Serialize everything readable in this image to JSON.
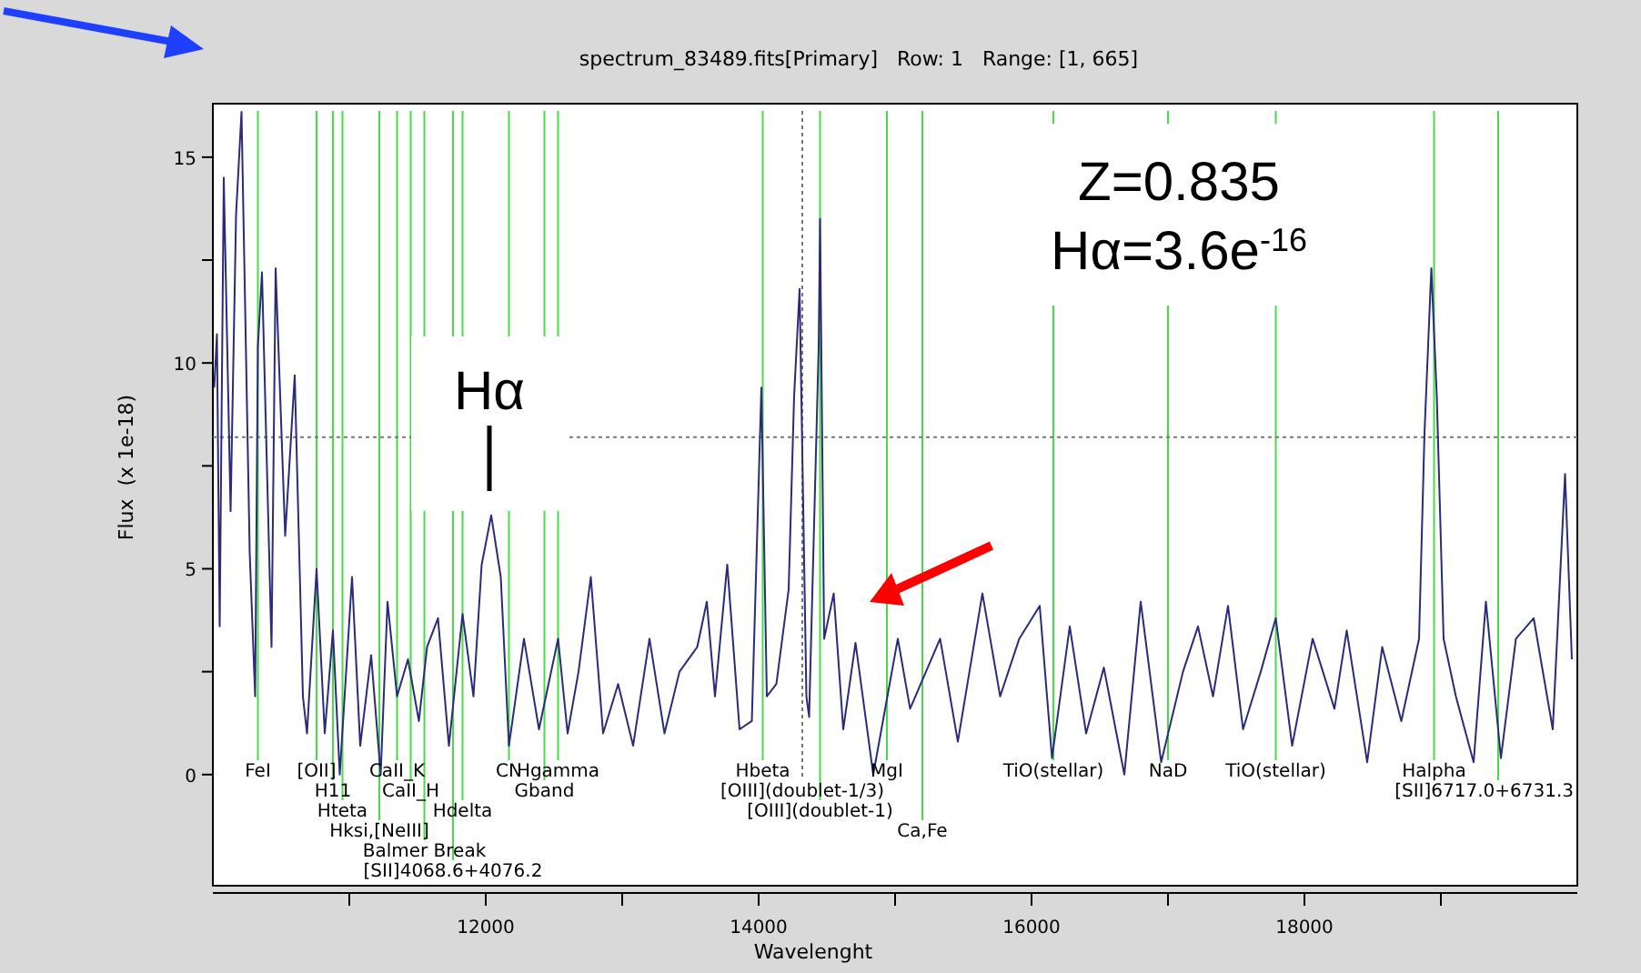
{
  "chart_data": {
    "type": "line",
    "title": "spectrum_83489.fits[Primary]   Row: 1   Range: [1, 665]",
    "xlabel": "Wavelenght",
    "ylabel": "Flux  (x 1e-18)",
    "x": [
      10010,
      10030,
      10050,
      10080,
      10130,
      10170,
      10210,
      10270,
      10310,
      10330,
      10360,
      10430,
      10460,
      10530,
      10600,
      10660,
      10690,
      10760,
      10820,
      10880,
      10930,
      11020,
      11080,
      11160,
      11230,
      11280,
      11350,
      11430,
      11510,
      11570,
      11650,
      11730,
      11830,
      11910,
      11970,
      12040,
      12110,
      12170,
      12280,
      12390,
      12530,
      12600,
      12680,
      12770,
      12860,
      12970,
      13080,
      13200,
      13310,
      13420,
      13550,
      13620,
      13680,
      13770,
      13860,
      13950,
      14020,
      14060,
      14130,
      14220,
      14260,
      14300,
      14350,
      14370,
      14440,
      14450,
      14480,
      14550,
      14620,
      14710,
      14840,
      15020,
      15110,
      15330,
      15460,
      15640,
      15770,
      15910,
      16060,
      16150,
      16280,
      16400,
      16530,
      16680,
      16800,
      16950,
      17110,
      17220,
      17330,
      17440,
      17550,
      17680,
      17790,
      17910,
      18060,
      18220,
      18310,
      18460,
      18570,
      18710,
      18840,
      18880,
      18930,
      18970,
      19020,
      19110,
      19240,
      19330,
      19440,
      19550,
      19680,
      19820,
      19910,
      19960
    ],
    "series": [
      {
        "color": "#2b2b7a",
        "values": [
          9.4,
          10.7,
          3.6,
          14.5,
          6.4,
          13.6,
          16.1,
          5.4,
          1.9,
          10.4,
          12.2,
          3.1,
          12.3,
          5.8,
          9.7,
          1.9,
          1.0,
          5.0,
          1.0,
          3.5,
          0.0,
          4.8,
          0.7,
          2.9,
          0.0,
          4.2,
          1.9,
          2.8,
          1.3,
          3.1,
          3.8,
          0.7,
          3.9,
          1.9,
          5.1,
          6.3,
          4.8,
          0.7,
          3.3,
          1.1,
          3.3,
          1.0,
          2.5,
          4.8,
          1.0,
          2.2,
          0.7,
          3.3,
          1.0,
          2.5,
          3.1,
          4.2,
          1.9,
          5.1,
          1.1,
          1.3,
          9.4,
          1.9,
          2.2,
          4.5,
          9.2,
          11.8,
          1.9,
          1.4,
          10.4,
          13.5,
          3.3,
          4.4,
          1.1,
          3.2,
          0.0,
          3.3,
          1.6,
          3.3,
          0.8,
          4.4,
          1.9,
          3.3,
          4.1,
          0.4,
          3.6,
          1.0,
          2.6,
          0.0,
          4.2,
          0.3,
          2.5,
          3.6,
          1.9,
          4.1,
          1.1,
          2.5,
          3.8,
          0.7,
          3.3,
          1.6,
          3.5,
          0.3,
          3.1,
          1.3,
          3.3,
          8.3,
          12.3,
          9.2,
          3.3,
          1.9,
          0.3,
          4.2,
          0.4,
          3.3,
          3.8,
          1.1,
          7.3,
          2.8
        ]
      }
    ],
    "xlim": [
      10000,
      20000
    ],
    "xticks": [
      {
        "value": 11000,
        "label": null
      },
      12000,
      {
        "value": 13000,
        "label": null
      },
      14000,
      {
        "value": 15000,
        "label": null
      },
      16000,
      {
        "value": 17000,
        "label": null
      },
      18000,
      {
        "value": 19000,
        "label": null
      }
    ],
    "ylim": [
      -2.7,
      16.3
    ],
    "yticks": [
      0,
      {
        "value": 2.5,
        "label": null
      },
      5,
      {
        "value": 7.5,
        "label": null
      },
      10,
      {
        "value": 12.5,
        "label": null
      },
      15
    ],
    "grid": false,
    "marker": "none",
    "line_style": "solid",
    "ref_lines": [
      {
        "axis": "x",
        "value": 10330,
        "label": "FeI",
        "color": "#44dd44"
      },
      {
        "axis": "x",
        "value": 10760,
        "label": "[OII]",
        "color": "#44dd44"
      },
      {
        "axis": "x",
        "value": 10880,
        "label": "H11",
        "color": "#44dd44"
      },
      {
        "axis": "x",
        "value": 10950,
        "label": "Hteta",
        "color": "#44dd44"
      },
      {
        "axis": "x",
        "value": 11220,
        "label": "Hksi,[NeIII]",
        "color": "#44dd44"
      },
      {
        "axis": "x",
        "value": 11350,
        "label": "CaII_K",
        "color": "#44dd44"
      },
      {
        "axis": "x",
        "value": 11450,
        "label": "CaII_H",
        "color": "#44dd44"
      },
      {
        "axis": "x",
        "value": 11550,
        "label": "Balmer Break",
        "color": "#44dd44"
      },
      {
        "axis": "x",
        "value": 11760,
        "label": "[SII]4068.6+4076.2",
        "color": "#44dd44"
      },
      {
        "axis": "x",
        "value": 11830,
        "label": "Hdelta",
        "color": "#44dd44"
      },
      {
        "axis": "x",
        "value": 12170,
        "label": "CN",
        "color": "#44dd44"
      },
      {
        "axis": "x",
        "value": 12430,
        "label": "Gband",
        "color": "#44dd44"
      },
      {
        "axis": "x",
        "value": 12530,
        "label": "Hgamma",
        "color": "#44dd44"
      },
      {
        "axis": "x",
        "value": 14030,
        "label": "Hbeta",
        "color": "#44dd44"
      },
      {
        "axis": "x",
        "value": 14320,
        "label": "[OIII](doublet-1/3)",
        "color": "#777777",
        "line_style": "dotted"
      },
      {
        "axis": "x",
        "value": 14450,
        "label": "[OIII](doublet-1)",
        "color": "#44dd44"
      },
      {
        "axis": "x",
        "value": 14940,
        "label": "MgI",
        "color": "#44dd44"
      },
      {
        "axis": "x",
        "value": 15200,
        "label": "Ca,Fe",
        "color": "#44dd44"
      },
      {
        "axis": "x",
        "value": 16160,
        "label": "TiO(stellar)",
        "color": "#44dd44"
      },
      {
        "axis": "x",
        "value": 17000,
        "label": "NaD",
        "color": "#44dd44"
      },
      {
        "axis": "x",
        "value": 17790,
        "label": "TiO(stellar)",
        "color": "#44dd44"
      },
      {
        "axis": "x",
        "value": 18950,
        "label": "Halpha",
        "color": "#44dd44"
      },
      {
        "axis": "x",
        "value": 19420,
        "label": "[SII]6717.0+6731.3",
        "color": "#44dd44"
      },
      {
        "axis": "y",
        "value": 8.2,
        "color": "#777777",
        "line_style": "dotted"
      }
    ],
    "annotations": [
      "Hα",
      "Z=0.835",
      "Hα=3.6e$^{-16}$"
    ]
  }
}
